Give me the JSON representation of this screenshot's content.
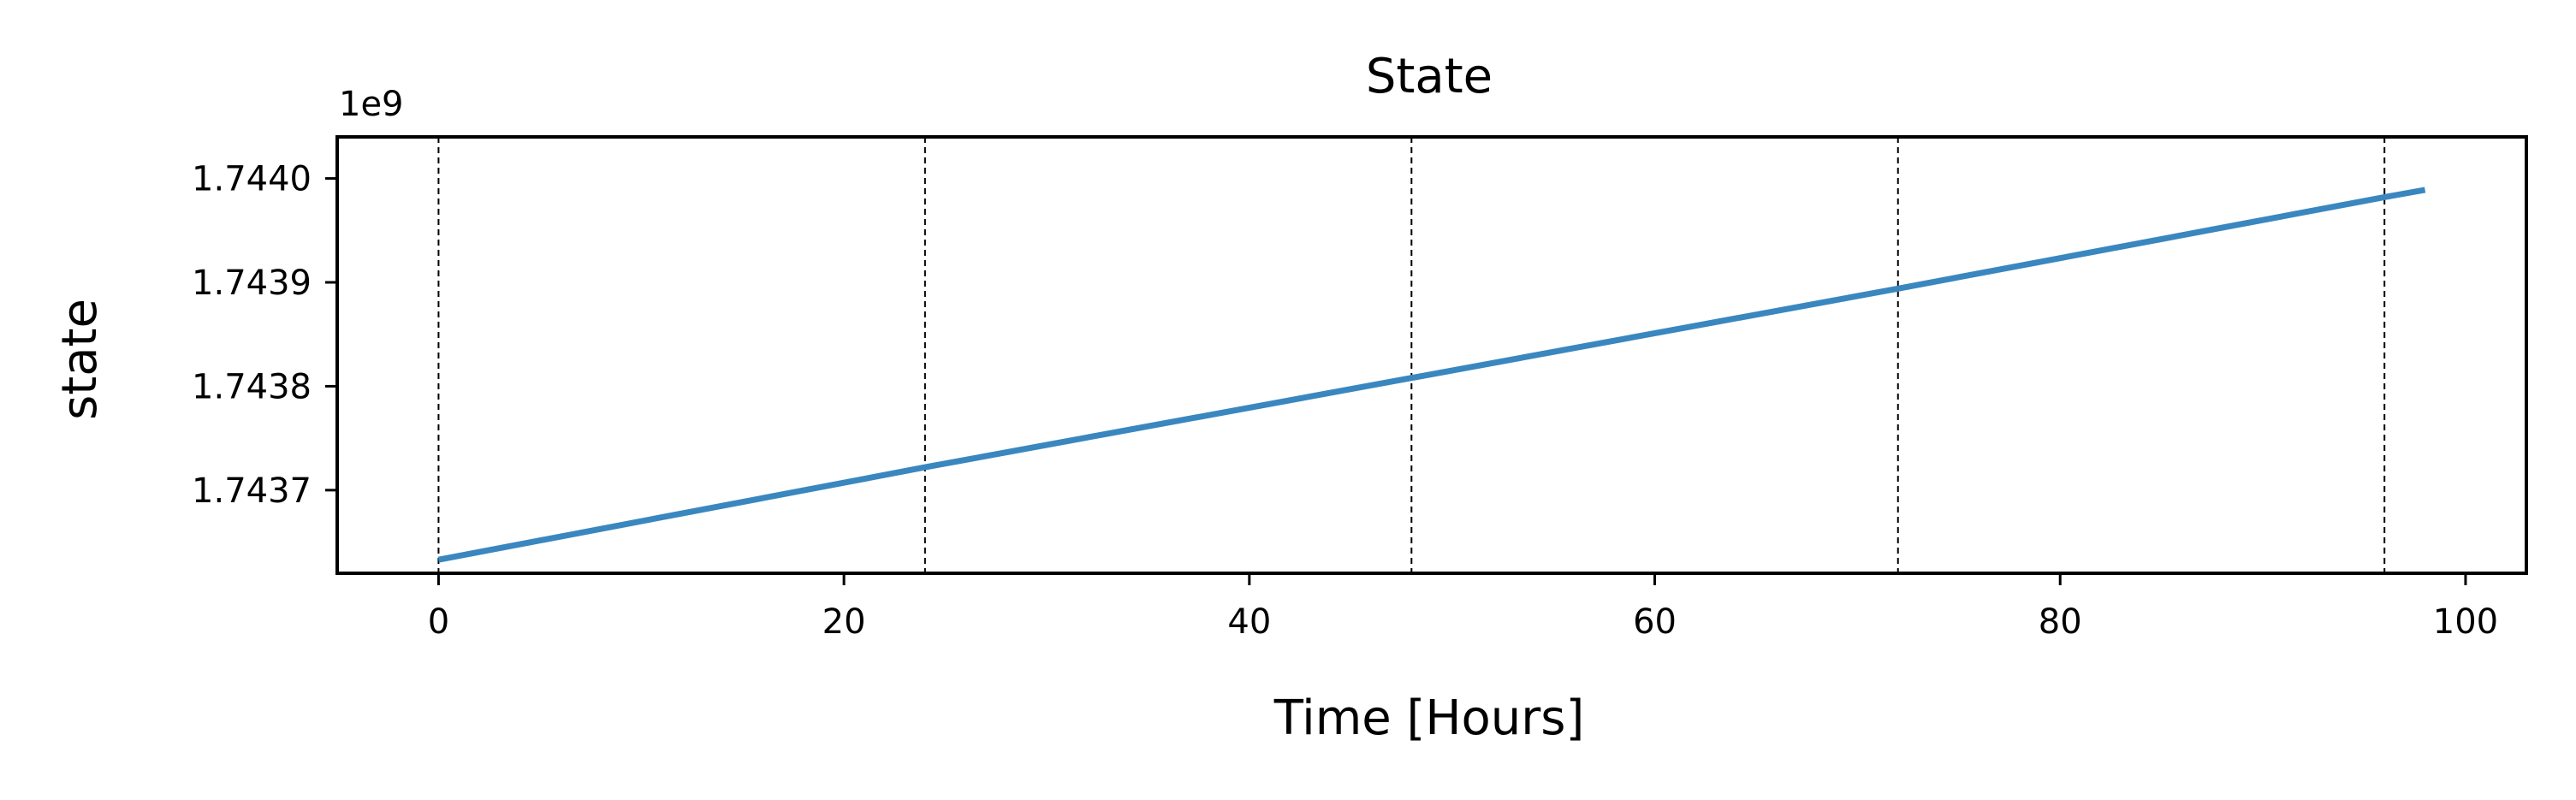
{
  "chart_data": {
    "type": "line",
    "title": "State",
    "xlabel": "Time [Hours]",
    "ylabel": "state",
    "y_offset_label": "1e9",
    "xlim": [
      -5,
      103
    ],
    "ylim": [
      1.74362,
      1.74404
    ],
    "x_ticks": [
      0,
      20,
      40,
      60,
      80,
      100
    ],
    "x_tick_labels": [
      "0",
      "20",
      "40",
      "60",
      "80",
      "100"
    ],
    "y_ticks": [
      1.7437,
      1.7438,
      1.7439,
      1.744
    ],
    "y_tick_labels": [
      "1.7437",
      "1.7438",
      "1.7439",
      "1.7440"
    ],
    "vlines": [
      0,
      24,
      48,
      72,
      96
    ],
    "vline_style": "dashed",
    "grid": false,
    "legend": "none",
    "series": [
      {
        "color": "#3a87c0",
        "x": [
          0,
          24,
          48,
          72,
          96,
          98
        ],
        "y": [
          1.743633,
          1.743722,
          1.743808,
          1.743894,
          1.743982,
          1.743989
        ]
      }
    ]
  }
}
